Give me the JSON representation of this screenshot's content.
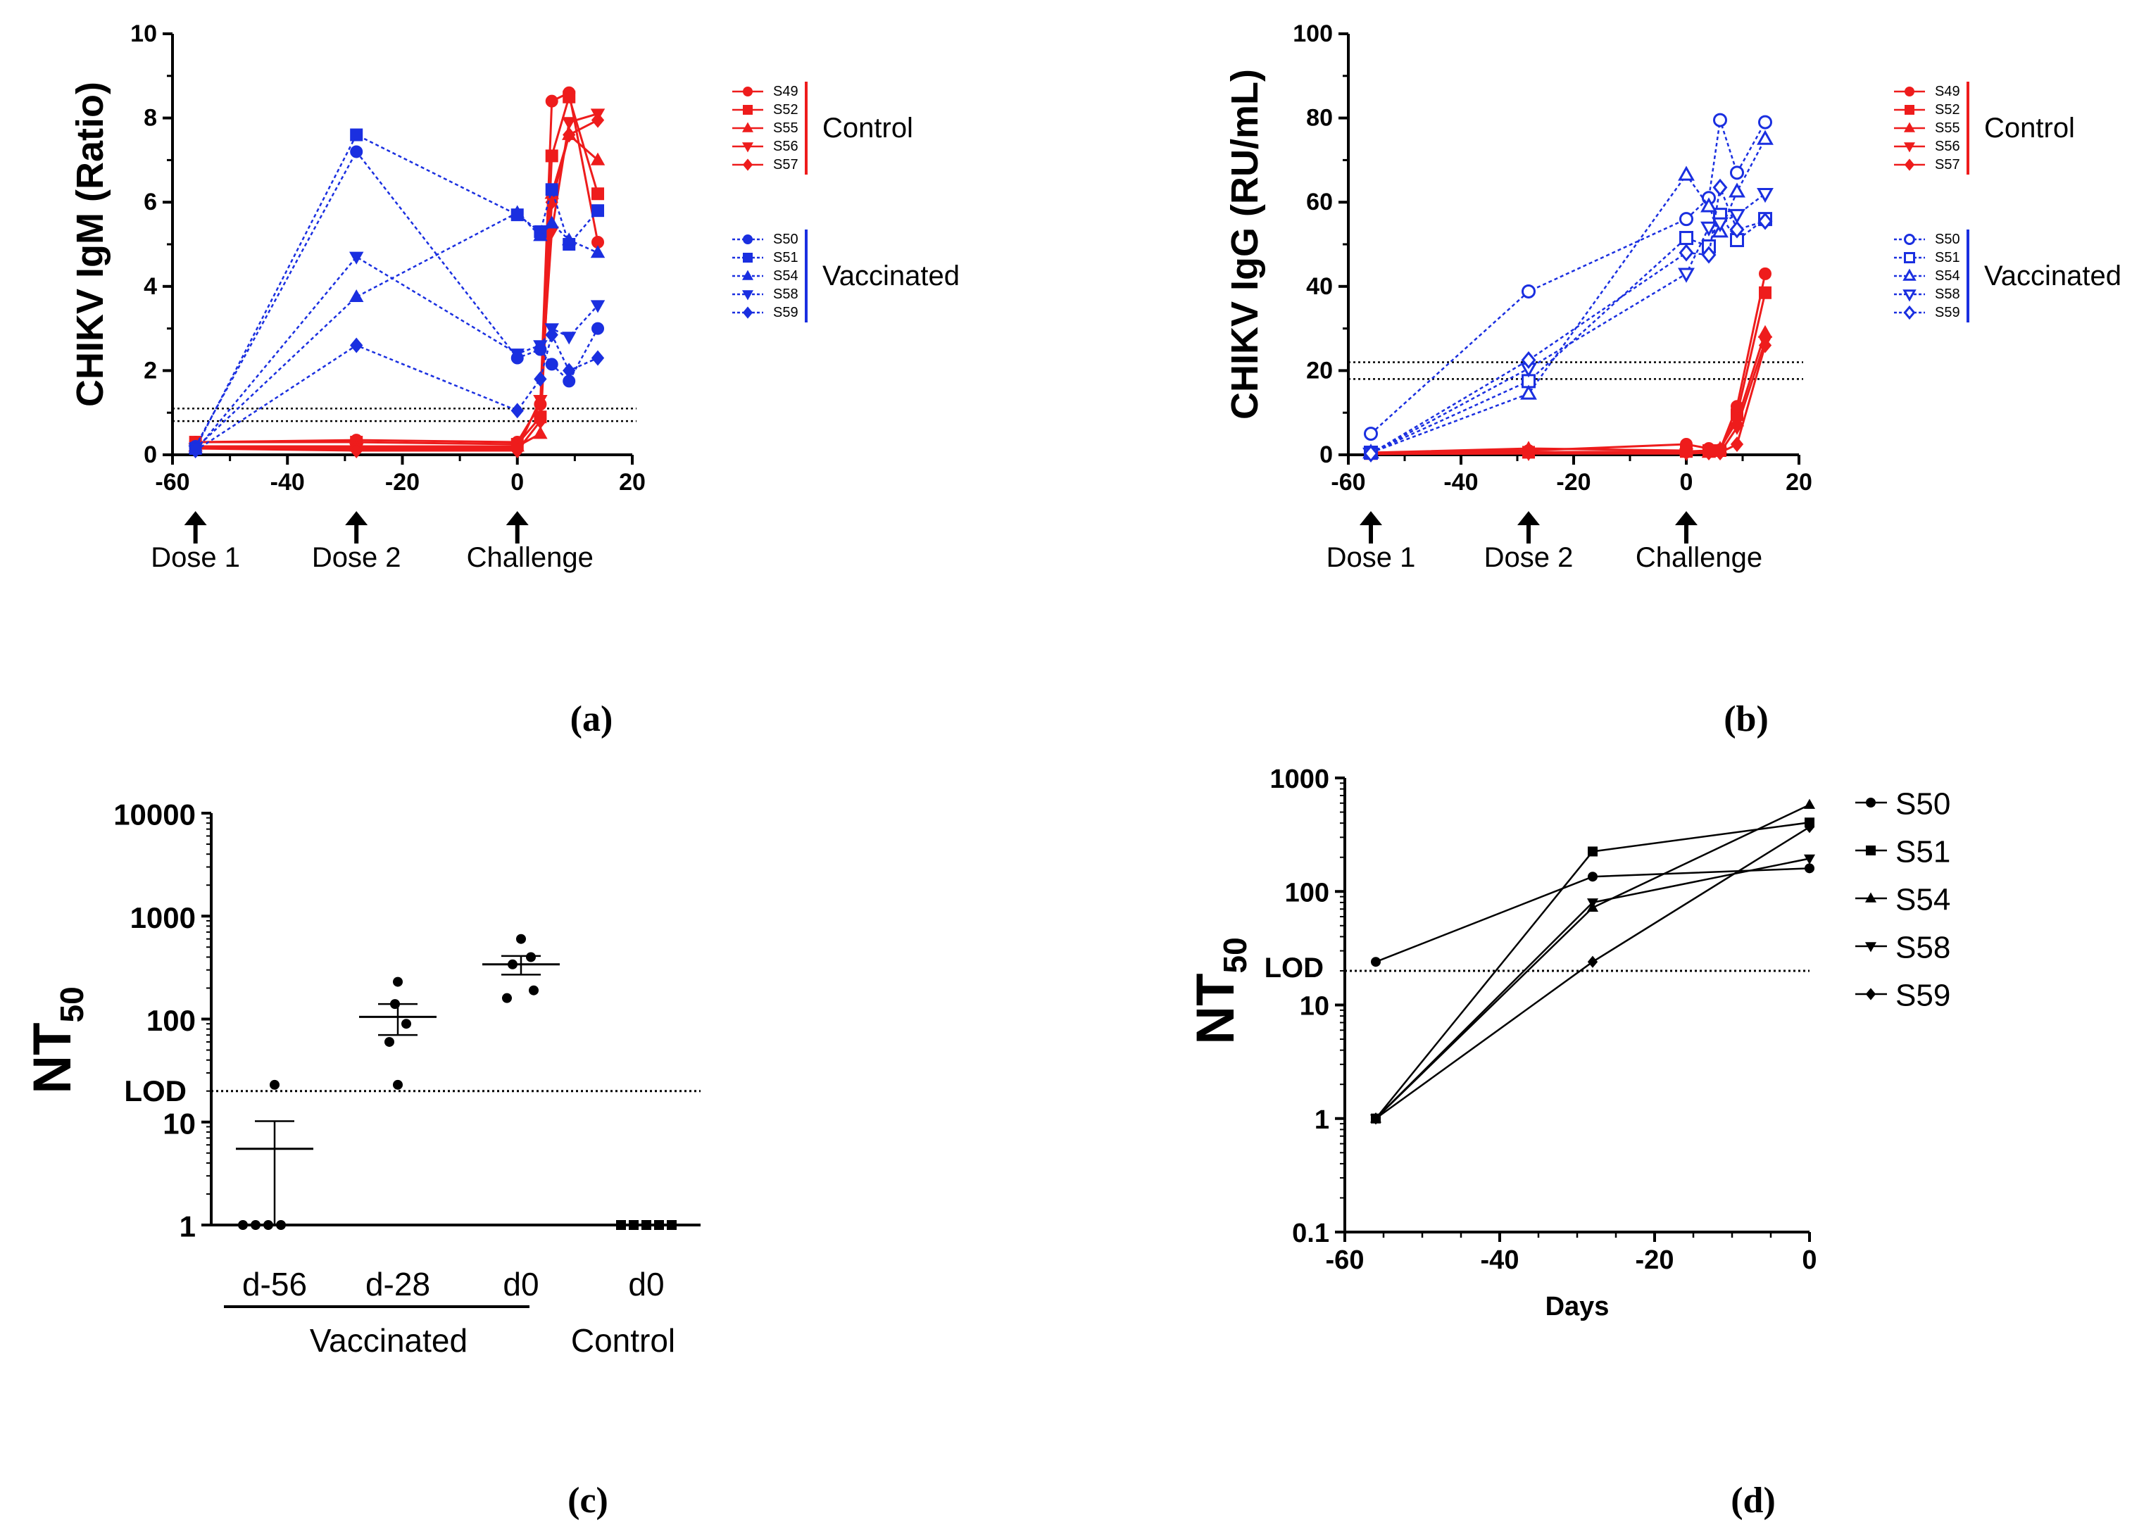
{
  "chart_data": [
    {
      "id": "a",
      "panel_label": "(a)",
      "type": "line",
      "title": "",
      "xlabel": "",
      "ylabel": "CHIKV IgM (Ratio)",
      "xlim": [
        -60,
        20
      ],
      "ylim": [
        0,
        10
      ],
      "xticks": [
        "-60",
        "-40",
        "-20",
        "0",
        "20"
      ],
      "yticks": [
        "0",
        "2",
        "4",
        "6",
        "8",
        "10"
      ],
      "thresholds": [
        0.8,
        1.1
      ],
      "events": [
        {
          "x": -56,
          "label": "Dose 1"
        },
        {
          "x": -28,
          "label": "Dose 2"
        },
        {
          "x": 0,
          "label": "Challenge"
        }
      ],
      "groups": [
        {
          "name": "Control",
          "color": "#ee1c1c",
          "series": [
            "S49",
            "S52",
            "S55",
            "S56",
            "S57"
          ]
        },
        {
          "name": "Vaccinated",
          "color": "#1a2fe0",
          "series": [
            "S50",
            "S51",
            "S54",
            "S58",
            "S59"
          ]
        }
      ],
      "series": [
        {
          "name": "S49",
          "group": "Control",
          "marker": "circle",
          "fill": true,
          "x": [
            -56,
            -28,
            0,
            4,
            6,
            9,
            14
          ],
          "y": [
            0.3,
            0.35,
            0.3,
            1.2,
            8.4,
            8.6,
            5.05
          ]
        },
        {
          "name": "S52",
          "group": "Control",
          "marker": "square",
          "fill": true,
          "x": [
            -56,
            -28,
            0,
            4,
            6,
            9,
            14
          ],
          "y": [
            0.3,
            0.3,
            0.25,
            0.9,
            7.1,
            8.5,
            6.2
          ]
        },
        {
          "name": "S55",
          "group": "Control",
          "marker": "triangle",
          "fill": true,
          "x": [
            -56,
            -28,
            0,
            4,
            6,
            9,
            14
          ],
          "y": [
            0.2,
            0.2,
            0.2,
            0.5,
            6.2,
            7.6,
            7.0
          ]
        },
        {
          "name": "S56",
          "group": "Control",
          "marker": "triangle-down",
          "fill": true,
          "x": [
            -56,
            -28,
            0,
            4,
            6,
            9,
            14
          ],
          "y": [
            0.15,
            0.15,
            0.15,
            1.3,
            5.3,
            7.9,
            8.1
          ]
        },
        {
          "name": "S57",
          "group": "Control",
          "marker": "diamond",
          "fill": true,
          "x": [
            -56,
            -28,
            0,
            4,
            6,
            9,
            14
          ],
          "y": [
            0.15,
            0.1,
            0.1,
            0.8,
            6.0,
            7.6,
            7.95
          ]
        },
        {
          "name": "S50",
          "group": "Vaccinated",
          "marker": "circle",
          "fill": true,
          "x": [
            -56,
            -28,
            0,
            4,
            6,
            9,
            14
          ],
          "y": [
            0.2,
            7.2,
            2.3,
            2.5,
            2.15,
            1.75,
            3.0
          ]
        },
        {
          "name": "S51",
          "group": "Vaccinated",
          "marker": "square",
          "fill": true,
          "x": [
            -56,
            -28,
            0,
            4,
            6,
            9,
            14
          ],
          "y": [
            0.15,
            7.6,
            5.7,
            5.3,
            6.3,
            5.0,
            5.8
          ]
        },
        {
          "name": "S54",
          "group": "Vaccinated",
          "marker": "triangle",
          "fill": true,
          "x": [
            -56,
            -28,
            0,
            4,
            6,
            9,
            14
          ],
          "y": [
            0.15,
            3.75,
            5.75,
            5.2,
            5.5,
            5.1,
            4.8
          ]
        },
        {
          "name": "S58",
          "group": "Vaccinated",
          "marker": "triangle-down",
          "fill": true,
          "x": [
            -56,
            -28,
            0,
            4,
            6,
            9,
            14
          ],
          "y": [
            0.1,
            4.7,
            2.4,
            2.6,
            3.0,
            2.8,
            3.55
          ]
        },
        {
          "name": "S59",
          "group": "Vaccinated",
          "marker": "diamond",
          "fill": true,
          "x": [
            -56,
            -28,
            0,
            4,
            6,
            9,
            14
          ],
          "y": [
            0.1,
            2.6,
            1.05,
            1.8,
            2.85,
            2.0,
            2.3
          ]
        }
      ]
    },
    {
      "id": "b",
      "panel_label": "(b)",
      "type": "line",
      "title": "",
      "xlabel": "",
      "ylabel": "CHIKV IgG (RU/mL)",
      "xlim": [
        -60,
        20
      ],
      "ylim": [
        0,
        100
      ],
      "xticks": [
        "-60",
        "-40",
        "-20",
        "0",
        "20"
      ],
      "yticks": [
        "0",
        "20",
        "40",
        "60",
        "80",
        "100"
      ],
      "thresholds": [
        18,
        22
      ],
      "events": [
        {
          "x": -56,
          "label": "Dose 1"
        },
        {
          "x": -28,
          "label": "Dose 2"
        },
        {
          "x": 0,
          "label": "Challenge"
        }
      ],
      "groups": [
        {
          "name": "Control",
          "color": "#ee1c1c",
          "series": [
            "S49",
            "S52",
            "S55",
            "S56",
            "S57"
          ]
        },
        {
          "name": "Vaccinated",
          "color": "#1a2fe0",
          "series": [
            "S50",
            "S51",
            "S54",
            "S58",
            "S59"
          ]
        }
      ],
      "series": [
        {
          "name": "S49",
          "group": "Control",
          "marker": "circle",
          "fill": true,
          "x": [
            -56,
            -28,
            0,
            4,
            6,
            9,
            14
          ],
          "y": [
            0.5,
            1.0,
            2.5,
            1.5,
            1.2,
            11.5,
            43
          ]
        },
        {
          "name": "S52",
          "group": "Control",
          "marker": "square",
          "fill": true,
          "x": [
            -56,
            -28,
            0,
            4,
            6,
            9,
            14
          ],
          "y": [
            0.3,
            0.6,
            0.8,
            1.0,
            1.0,
            9.5,
            38.5
          ]
        },
        {
          "name": "S55",
          "group": "Control",
          "marker": "triangle",
          "fill": true,
          "x": [
            -56,
            -28,
            0,
            4,
            6,
            9,
            14
          ],
          "y": [
            0.5,
            1.5,
            1.0,
            0.5,
            1.5,
            8.0,
            29
          ]
        },
        {
          "name": "S56",
          "group": "Control",
          "marker": "triangle-down",
          "fill": true,
          "x": [
            -56,
            -28,
            0,
            4,
            6,
            9,
            14
          ],
          "y": [
            0.2,
            0.3,
            0.3,
            0.5,
            0.5,
            6.5,
            27
          ]
        },
        {
          "name": "S57",
          "group": "Control",
          "marker": "diamond",
          "fill": true,
          "x": [
            -56,
            -28,
            0,
            4,
            6,
            9,
            14
          ],
          "y": [
            0.2,
            0.5,
            0.5,
            0.5,
            0.5,
            2.5,
            26
          ]
        },
        {
          "name": "S50",
          "group": "Vaccinated",
          "marker": "circle",
          "fill": false,
          "x": [
            -56,
            -28,
            0,
            4,
            6,
            9,
            14
          ],
          "y": [
            5,
            38.8,
            56,
            61,
            79.5,
            67,
            79
          ]
        },
        {
          "name": "S51",
          "group": "Vaccinated",
          "marker": "square",
          "fill": false,
          "x": [
            -56,
            -28,
            0,
            4,
            6,
            9,
            14
          ],
          "y": [
            0.5,
            17.5,
            51.5,
            49.5,
            57,
            51,
            56
          ]
        },
        {
          "name": "S54",
          "group": "Vaccinated",
          "marker": "triangle",
          "fill": false,
          "x": [
            -56,
            -28,
            0,
            4,
            6,
            9,
            14
          ],
          "y": [
            0.5,
            14.5,
            66.5,
            59,
            53,
            62.5,
            75
          ]
        },
        {
          "name": "S58",
          "group": "Vaccinated",
          "marker": "triangle-down",
          "fill": false,
          "x": [
            -56,
            -28,
            0,
            4,
            6,
            9,
            14
          ],
          "y": [
            0.3,
            20.5,
            43,
            54,
            55,
            57,
            62
          ]
        },
        {
          "name": "S59",
          "group": "Vaccinated",
          "marker": "diamond",
          "fill": false,
          "x": [
            -56,
            -28,
            0,
            4,
            6,
            9,
            14
          ],
          "y": [
            0.3,
            22.5,
            48,
            47.5,
            63.5,
            53.5,
            55.5
          ]
        }
      ]
    },
    {
      "id": "c",
      "panel_label": "(c)",
      "type": "scatter",
      "title": "",
      "xlabel": "",
      "ylabel": "NT50",
      "ylabel_main": "NT",
      "ylabel_sub": "50",
      "yscale": "log",
      "ylim": [
        1,
        10000
      ],
      "yticks": [
        "1",
        "10",
        "100",
        "1000",
        "10000"
      ],
      "lod": {
        "label": "LOD",
        "value": 20
      },
      "group_labels": [
        {
          "label": "Vaccinated",
          "spans": [
            "d-56",
            "d-28",
            "d0"
          ]
        },
        {
          "label": "Control",
          "spans": [
            "d0 "
          ]
        }
      ],
      "categories": [
        "d-56",
        "d-28",
        "d0",
        "d0 "
      ],
      "points": [
        [
          1,
          1,
          1,
          1,
          23
        ],
        [
          23,
          60,
          90,
          140,
          230
        ],
        [
          160,
          190,
          340,
          400,
          600
        ],
        [
          1,
          1,
          1,
          1,
          1
        ]
      ],
      "mean": [
        5.5,
        105,
        340,
        1
      ],
      "sem": [
        [
          1,
          10.2
        ],
        [
          70,
          140
        ],
        [
          270,
          410
        ],
        [
          1,
          1
        ]
      ]
    },
    {
      "id": "d",
      "panel_label": "(d)",
      "type": "line",
      "title": "",
      "xlabel": "Days",
      "ylabel": "NT50",
      "ylabel_main": "NT",
      "ylabel_sub": "50",
      "yscale": "log",
      "xlim": [
        -60,
        0
      ],
      "ylim": [
        0.1,
        1000
      ],
      "xticks": [
        "-60",
        "-40",
        "-20",
        "0"
      ],
      "yticks": [
        "0.1",
        "1",
        "10",
        "100",
        "1000"
      ],
      "lod": {
        "label": "LOD",
        "value": 20
      },
      "series": [
        {
          "name": "S50",
          "marker": "circle",
          "x": [
            -56,
            -28,
            0
          ],
          "y": [
            24,
            135,
            160
          ]
        },
        {
          "name": "S51",
          "marker": "square",
          "x": [
            -56,
            -28,
            0
          ],
          "y": [
            1,
            225,
            405
          ]
        },
        {
          "name": "S54",
          "marker": "triangle",
          "x": [
            -56,
            -28,
            0
          ],
          "y": [
            1,
            72,
            580
          ]
        },
        {
          "name": "S58",
          "marker": "triangle-down",
          "x": [
            -56,
            -28,
            0
          ],
          "y": [
            1,
            80,
            195
          ]
        },
        {
          "name": "S59",
          "marker": "diamond",
          "x": [
            -56,
            -28,
            0
          ],
          "y": [
            1,
            24,
            370
          ]
        }
      ]
    }
  ]
}
